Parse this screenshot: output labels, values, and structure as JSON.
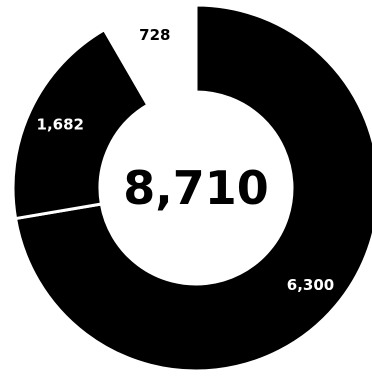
{
  "chart_data": {
    "type": "pie",
    "categories": [
      "6,300",
      "1,682",
      "728"
    ],
    "values": [
      6300,
      1682,
      728
    ],
    "value_labels": [
      "6,300",
      "1,682",
      "728"
    ],
    "total_label": "8,710",
    "colors": {
      "filled": "#000000",
      "empty": "#ffffff",
      "label_on_filled": "#ffffff",
      "label_on_empty": "#000000"
    },
    "segment_fill": [
      "filled",
      "filled",
      "empty"
    ],
    "title": "",
    "legend": "none"
  }
}
